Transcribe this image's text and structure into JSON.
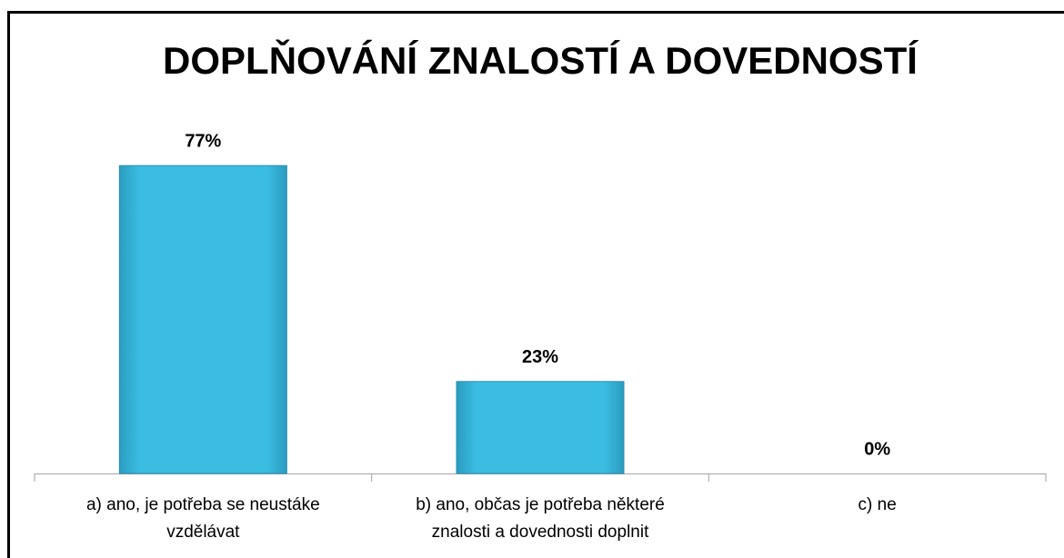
{
  "chart_data": {
    "type": "bar",
    "title": "DOPLŇOVÁNÍ ZNALOSTÍ A DOVEDNOSTÍ",
    "categories": [
      "a) ano, je potřeba se neustáke vzdělávat",
      "b) ano, občas je potřeba některé znalosti a dovednosti doplnit",
      "c) ne"
    ],
    "values": [
      77,
      23,
      0
    ],
    "value_labels": [
      "77%",
      "23%",
      "0%"
    ],
    "color": "#3bbde2"
  }
}
